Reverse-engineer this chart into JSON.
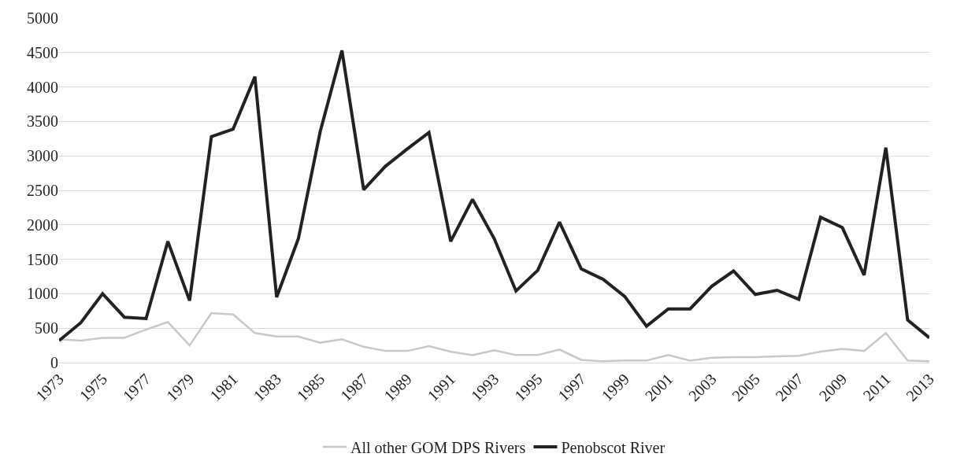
{
  "chart_data": {
    "type": "line",
    "x": [
      1973,
      1974,
      1975,
      1976,
      1977,
      1978,
      1979,
      1980,
      1981,
      1982,
      1983,
      1984,
      1985,
      1986,
      1987,
      1988,
      1989,
      1990,
      1991,
      1992,
      1993,
      1994,
      1995,
      1996,
      1997,
      1998,
      1999,
      2000,
      2001,
      2002,
      2003,
      2004,
      2005,
      2006,
      2007,
      2008,
      2009,
      2010,
      2011,
      2012,
      2013
    ],
    "series": [
      {
        "name": "All other GOM DPS Rivers",
        "color": "#c8c8c8",
        "values": [
          340,
          320,
          360,
          360,
          480,
          590,
          250,
          720,
          700,
          430,
          380,
          380,
          290,
          340,
          230,
          170,
          170,
          240,
          160,
          110,
          180,
          110,
          110,
          190,
          40,
          20,
          30,
          30,
          110,
          30,
          70,
          80,
          80,
          90,
          100,
          160,
          200,
          170,
          430,
          30,
          20
        ]
      },
      {
        "name": "Penobscot River",
        "color": "#222222",
        "values": [
          320,
          580,
          1000,
          660,
          640,
          1760,
          900,
          3280,
          3390,
          4150,
          950,
          1800,
          3350,
          4530,
          2510,
          2850,
          3100,
          3340,
          1760,
          2370,
          1800,
          1040,
          1340,
          2040,
          1360,
          1210,
          960,
          530,
          780,
          780,
          1110,
          1330,
          990,
          1050,
          920,
          2110,
          1960,
          1270,
          3120,
          620,
          360
        ]
      }
    ],
    "xlim": [
      1973,
      2013
    ],
    "xticks": [
      1973,
      1975,
      1977,
      1979,
      1981,
      1983,
      1985,
      1987,
      1989,
      1991,
      1993,
      1995,
      1997,
      1999,
      2001,
      2003,
      2005,
      2007,
      2009,
      2011,
      2013
    ],
    "ylim": [
      0,
      5000
    ],
    "yticks": [
      0,
      500,
      1000,
      1500,
      2000,
      2500,
      3000,
      3500,
      4000,
      4500,
      5000
    ],
    "grid": "y",
    "legend": "bottom",
    "marker": "none",
    "line_style": "solid"
  }
}
